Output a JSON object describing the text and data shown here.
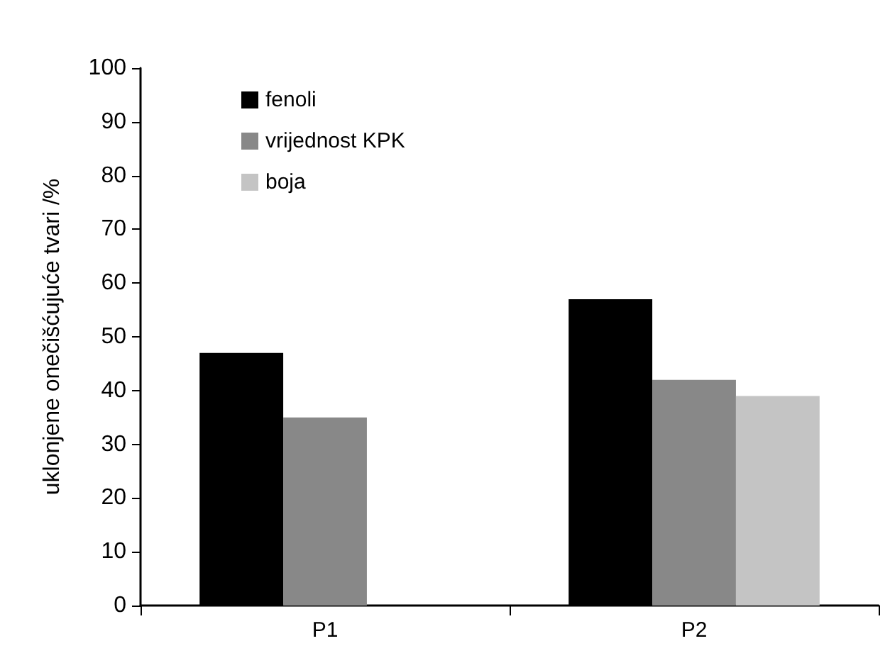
{
  "chart_data": {
    "type": "bar",
    "ylabel": "uklonjene onečišćujuće tvari /%",
    "categories": [
      "P1",
      "P2"
    ],
    "series": [
      {
        "name": "fenoli",
        "color": "#000000",
        "values": [
          47,
          57
        ]
      },
      {
        "name": "vrijednost KPK",
        "color": "#888888",
        "values": [
          35,
          42
        ]
      },
      {
        "name": "boja",
        "color": "#c4c4c4",
        "values": [
          null,
          39
        ]
      }
    ],
    "ylim": [
      0,
      100
    ],
    "yticks": [
      0,
      10,
      20,
      30,
      40,
      50,
      60,
      70,
      80,
      90,
      100
    ],
    "grid": false,
    "legend": "top left"
  }
}
